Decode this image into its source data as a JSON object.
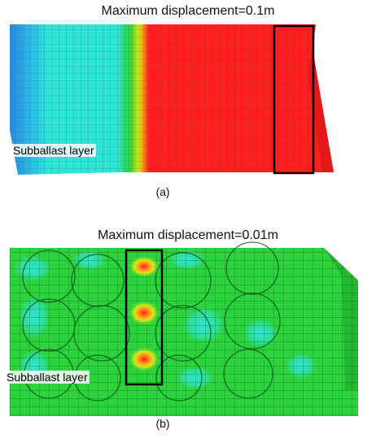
{
  "figure": {
    "panel_a": {
      "title": "Maximum displacement=0.1m",
      "layer_label": "Subballast layer",
      "caption": "(a)"
    },
    "panel_b": {
      "title": "Maximum displacement=0.01m",
      "layer_label": "Subballast layer",
      "caption": "(b)"
    }
  },
  "colors": {
    "red": "#ff1f1f",
    "orange": "#ff9a1a",
    "yellow": "#d8e81a",
    "green": "#2bd43a",
    "cyan": "#2ee6d6",
    "light_blue": "#29b8ea",
    "blue": "#2a88e0",
    "mesh": "#0a4a1a",
    "box": "#000000"
  }
}
